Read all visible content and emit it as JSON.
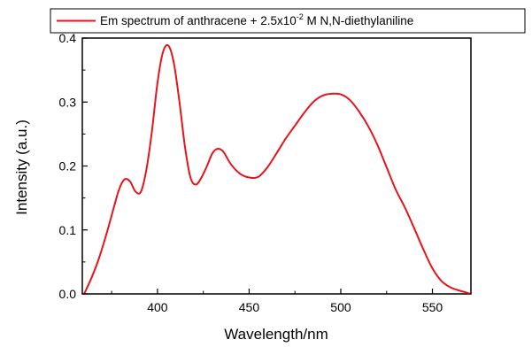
{
  "chart_data": {
    "type": "line",
    "xlabel": "Wavelength/nm",
    "ylabel": "Intensity (a.u.)",
    "xlim": [
      359,
      571
    ],
    "ylim": [
      0,
      0.4
    ],
    "x_ticks": [
      "400",
      "450",
      "500",
      "550"
    ],
    "y_ticks": [
      "0.0",
      "0.1",
      "0.2",
      "0.3",
      "0.4"
    ],
    "x_tick_values": [
      400,
      450,
      500,
      550
    ],
    "y_tick_values": [
      0,
      0.1,
      0.2,
      0.3,
      0.4
    ],
    "grid": false,
    "legend_position": "top",
    "legend": {
      "text": "Em spectrum of anthracene + 2.5x10",
      "superscript": "-2",
      "suffix": " M N,N-diethylaniline"
    },
    "series": [
      {
        "name": "Em spectrum of anthracene + 2.5x10-2 M N,N-diethylaniline",
        "color": "#e8141b",
        "x": [
          360,
          364,
          368,
          372,
          376,
          379,
          382,
          385,
          388,
          391,
          394,
          397,
          400,
          403,
          406,
          409,
          412,
          415,
          418,
          421,
          424,
          427,
          430,
          433,
          436,
          440,
          445,
          450,
          455,
          460,
          465,
          470,
          475,
          480,
          485,
          490,
          495,
          500,
          505,
          510,
          515,
          520,
          525,
          530,
          535,
          540,
          545,
          550,
          555,
          560,
          565,
          570
        ],
        "y": [
          0.0,
          0.025,
          0.055,
          0.092,
          0.133,
          0.163,
          0.179,
          0.176,
          0.16,
          0.16,
          0.195,
          0.255,
          0.33,
          0.378,
          0.388,
          0.36,
          0.3,
          0.23,
          0.182,
          0.171,
          0.182,
          0.2,
          0.22,
          0.227,
          0.222,
          0.203,
          0.188,
          0.182,
          0.183,
          0.198,
          0.22,
          0.243,
          0.263,
          0.283,
          0.3,
          0.31,
          0.313,
          0.312,
          0.303,
          0.285,
          0.262,
          0.233,
          0.198,
          0.163,
          0.135,
          0.103,
          0.07,
          0.04,
          0.02,
          0.01,
          0.005,
          0.001
        ]
      }
    ]
  }
}
